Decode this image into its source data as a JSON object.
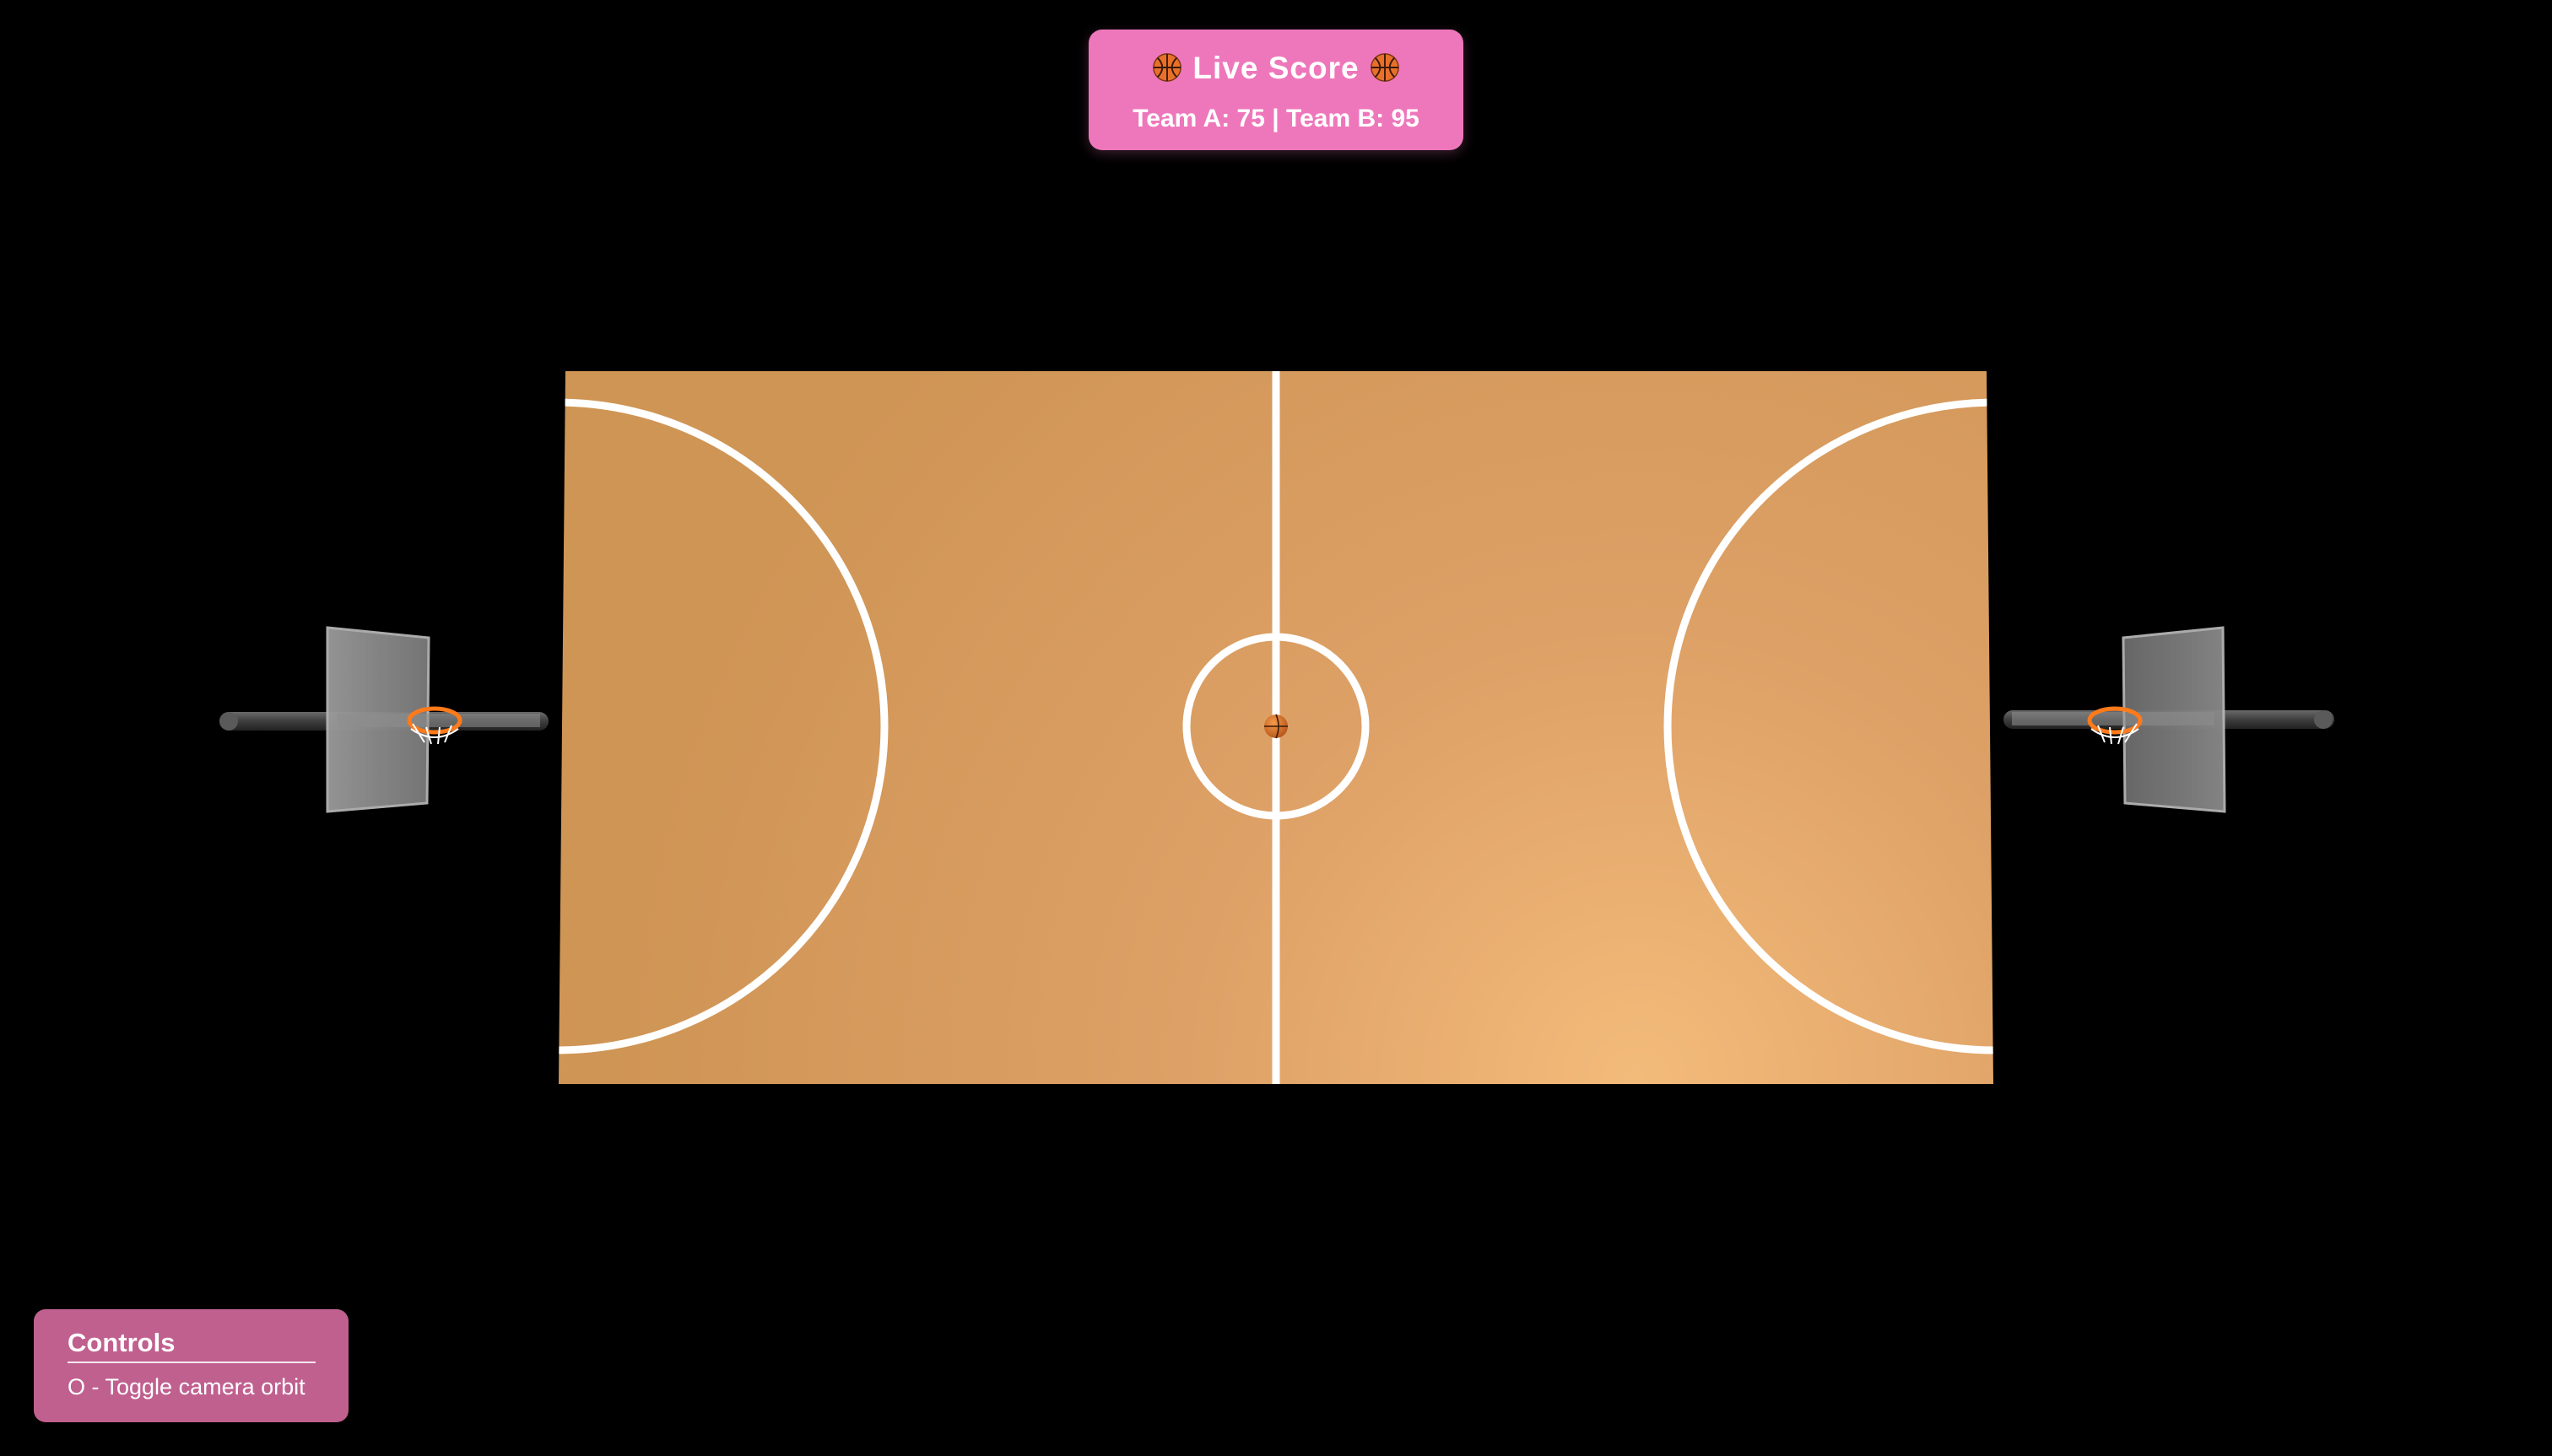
{
  "score": {
    "title": "Live Score",
    "title_icon": "basketball-icon",
    "line": "Team A: 75 | Team B: 95",
    "team_a": {
      "name": "Team A",
      "points": 75
    },
    "team_b": {
      "name": "Team B",
      "points": 95
    }
  },
  "controls": {
    "title": "Controls",
    "items": [
      {
        "key": "O",
        "label": "O - Toggle camera orbit"
      }
    ]
  },
  "scene": {
    "court_color": "#d1975a",
    "court_highlight": "#f2bb7a",
    "line_color": "#ffffff",
    "ball_color": "#e07a2a",
    "hoop_color": "#ff7a1a",
    "backboard_color": "#8a8a8a"
  },
  "colors": {
    "score_bg": "#ee77bb",
    "controls_bg": "#c0608f",
    "background": "#000000"
  }
}
